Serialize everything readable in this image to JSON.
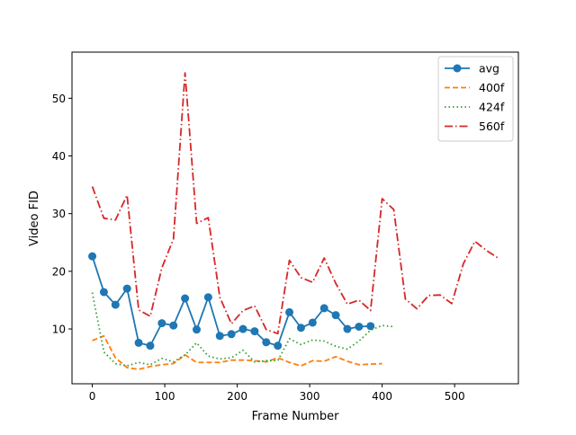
{
  "chart_data": {
    "type": "line",
    "title": "",
    "xlabel": "Frame Number",
    "ylabel": "Video FID",
    "xlim": [
      -28,
      588
    ],
    "ylim": [
      0.5,
      58
    ],
    "xticks": [
      0,
      100,
      200,
      300,
      400,
      500
    ],
    "yticks": [
      10,
      20,
      30,
      40,
      50
    ],
    "grid": false,
    "legend_position": "top-right",
    "series": [
      {
        "name": "avg",
        "color": "#1f77b4",
        "style": "solid-marker",
        "x": [
          0,
          16,
          32,
          48,
          64,
          80,
          96,
          112,
          128,
          144,
          160,
          176,
          192,
          208,
          224,
          240,
          256,
          272,
          288,
          304,
          320,
          336,
          352,
          368,
          384
        ],
        "y": [
          22.6,
          16.4,
          14.2,
          17.0,
          7.6,
          7.1,
          11.0,
          10.6,
          15.3,
          9.9,
          15.5,
          8.8,
          9.1,
          10.0,
          9.6,
          7.7,
          7.1,
          12.9,
          10.2,
          11.1,
          13.6,
          12.4,
          10.0,
          10.4,
          10.5
        ]
      },
      {
        "name": "400f",
        "color": "#ff7f0e",
        "style": "dashed",
        "x": [
          0,
          16,
          32,
          48,
          64,
          80,
          96,
          112,
          128,
          144,
          160,
          176,
          192,
          208,
          224,
          240,
          256,
          272,
          288,
          304,
          320,
          336,
          352,
          368,
          384,
          400
        ],
        "y": [
          8.0,
          8.8,
          5.0,
          3.3,
          3.0,
          3.5,
          3.8,
          4.0,
          5.5,
          4.2,
          4.2,
          4.2,
          4.6,
          4.6,
          4.5,
          4.3,
          5.0,
          4.2,
          3.6,
          4.5,
          4.4,
          5.2,
          4.4,
          3.8,
          3.9,
          4.0
        ]
      },
      {
        "name": "424f",
        "color": "#2ca02c",
        "style": "dotted",
        "x": [
          0,
          16,
          32,
          48,
          64,
          80,
          96,
          112,
          128,
          144,
          160,
          176,
          192,
          208,
          224,
          240,
          256,
          272,
          288,
          304,
          320,
          336,
          352,
          368,
          384,
          400,
          416
        ],
        "y": [
          16.3,
          6.0,
          4.0,
          3.6,
          4.2,
          3.8,
          4.9,
          4.3,
          5.5,
          7.6,
          5.3,
          4.8,
          5.0,
          6.3,
          4.3,
          4.5,
          4.5,
          8.3,
          7.3,
          8.1,
          7.9,
          7.0,
          6.5,
          7.9,
          9.8,
          10.6,
          10.4
        ]
      },
      {
        "name": "560f",
        "color": "#d62728",
        "style": "dashdot",
        "x": [
          0,
          16,
          32,
          48,
          64,
          80,
          96,
          112,
          128,
          144,
          160,
          176,
          192,
          208,
          224,
          240,
          256,
          272,
          288,
          304,
          320,
          336,
          352,
          368,
          384,
          400,
          416,
          432,
          448,
          464,
          480,
          496,
          512,
          528,
          544,
          560
        ],
        "y": [
          34.7,
          29.2,
          28.9,
          33.2,
          13.3,
          12.2,
          20.6,
          25.6,
          54.4,
          28.3,
          29.3,
          15.5,
          10.9,
          13.2,
          14.0,
          9.9,
          9.2,
          21.9,
          18.9,
          18.1,
          22.3,
          17.9,
          14.3,
          15.0,
          13.2,
          32.6,
          30.7,
          15.2,
          13.5,
          15.8,
          15.9,
          14.4,
          21.3,
          25.2,
          23.6,
          22.3
        ]
      }
    ]
  }
}
